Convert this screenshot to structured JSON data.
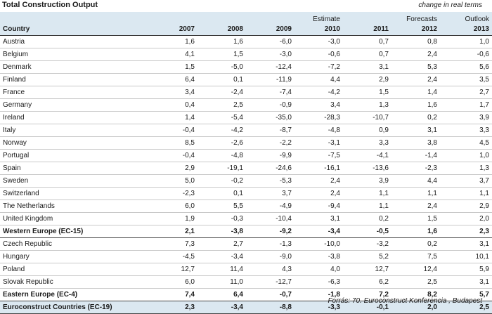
{
  "header": {
    "title": "Total Construction Output",
    "note": "change in real terms"
  },
  "table": {
    "group_labels": [
      "",
      "",
      "",
      "",
      "Estimate",
      "",
      "Forecasts",
      "Outlook"
    ],
    "columns": [
      "Country",
      "2007",
      "2008",
      "2009",
      "2010",
      "2011",
      "2012",
      "2013"
    ],
    "rows": [
      {
        "kind": "row",
        "country": "Austria",
        "values": [
          "1,6",
          "1,6",
          "-6,0",
          "-3,0",
          "0,7",
          "0,8",
          "1,0"
        ]
      },
      {
        "kind": "row",
        "country": "Belgium",
        "values": [
          "4,1",
          "1,5",
          "-3,0",
          "-0,6",
          "0,7",
          "2,4",
          "-0,6"
        ]
      },
      {
        "kind": "row",
        "country": "Denmark",
        "values": [
          "1,5",
          "-5,0",
          "-12,4",
          "-7,2",
          "3,1",
          "5,3",
          "5,6"
        ]
      },
      {
        "kind": "row",
        "country": "Finland",
        "values": [
          "6,4",
          "0,1",
          "-11,9",
          "4,4",
          "2,9",
          "2,4",
          "3,5"
        ]
      },
      {
        "kind": "row",
        "country": "France",
        "values": [
          "3,4",
          "-2,4",
          "-7,4",
          "-4,2",
          "1,5",
          "1,4",
          "2,7"
        ]
      },
      {
        "kind": "row",
        "country": "Germany",
        "values": [
          "0,4",
          "2,5",
          "-0,9",
          "3,4",
          "1,3",
          "1,6",
          "1,7"
        ]
      },
      {
        "kind": "row",
        "country": "Ireland",
        "values": [
          "1,4",
          "-5,4",
          "-35,0",
          "-28,3",
          "-10,7",
          "0,2",
          "3,9"
        ]
      },
      {
        "kind": "row",
        "country": "Italy",
        "values": [
          "-0,4",
          "-4,2",
          "-8,7",
          "-4,8",
          "0,9",
          "3,1",
          "3,3"
        ]
      },
      {
        "kind": "row",
        "country": "Norway",
        "values": [
          "8,5",
          "-2,6",
          "-2,2",
          "-3,1",
          "3,3",
          "3,8",
          "4,5"
        ]
      },
      {
        "kind": "row",
        "country": "Portugal",
        "values": [
          "-0,4",
          "-4,8",
          "-9,9",
          "-7,5",
          "-4,1",
          "-1,4",
          "1,0"
        ]
      },
      {
        "kind": "row",
        "country": "Spain",
        "values": [
          "2,9",
          "-19,1",
          "-24,6",
          "-16,1",
          "-13,6",
          "-2,3",
          "1,3"
        ]
      },
      {
        "kind": "row",
        "country": "Sweden",
        "values": [
          "5,0",
          "-0,2",
          "-5,3",
          "2,4",
          "3,9",
          "4,4",
          "3,7"
        ]
      },
      {
        "kind": "row",
        "country": "Switzerland",
        "values": [
          "-2,3",
          "0,1",
          "3,7",
          "2,4",
          "1,1",
          "1,1",
          "1,1"
        ]
      },
      {
        "kind": "row",
        "country": "The Netherlands",
        "values": [
          "6,0",
          "5,5",
          "-4,9",
          "-9,4",
          "1,1",
          "2,4",
          "2,9"
        ]
      },
      {
        "kind": "row",
        "country": "United Kingdom",
        "values": [
          "1,9",
          "-0,3",
          "-10,4",
          "3,1",
          "0,2",
          "1,5",
          "2,0"
        ]
      },
      {
        "kind": "sub",
        "country": "Western Europe (EC-15)",
        "values": [
          "2,1",
          "-3,8",
          "-9,2",
          "-3,4",
          "-0,5",
          "1,6",
          "2,3"
        ]
      },
      {
        "kind": "row",
        "country": "Czech Republic",
        "values": [
          "7,3",
          "2,7",
          "-1,3",
          "-10,0",
          "-3,2",
          "0,2",
          "3,1"
        ]
      },
      {
        "kind": "row",
        "country": "Hungary",
        "values": [
          "-4,5",
          "-3,4",
          "-9,0",
          "-3,8",
          "5,2",
          "7,5",
          "10,1"
        ]
      },
      {
        "kind": "row",
        "country": "Poland",
        "values": [
          "12,7",
          "11,4",
          "4,3",
          "4,0",
          "12,7",
          "12,4",
          "5,9"
        ]
      },
      {
        "kind": "row",
        "country": "Slovak Republic",
        "values": [
          "6,0",
          "11,0",
          "-12,7",
          "-6,3",
          "6,2",
          "2,5",
          "3,1"
        ]
      },
      {
        "kind": "sub",
        "country": "Eastern Europe (EC-4)",
        "values": [
          "7,4",
          "6,4",
          "-0,7",
          "-1,8",
          "7,2",
          "8,2",
          "5,7"
        ]
      },
      {
        "kind": "total",
        "country": "Euroconstruct Countries (EC-19)",
        "values": [
          "2,3",
          "-3,4",
          "-8,8",
          "-3,3",
          "-0,1",
          "2,0",
          "2,5"
        ]
      }
    ]
  },
  "footer": {
    "source": "Forrás: 70. Euroconstruct Konferencia , Budapest"
  }
}
